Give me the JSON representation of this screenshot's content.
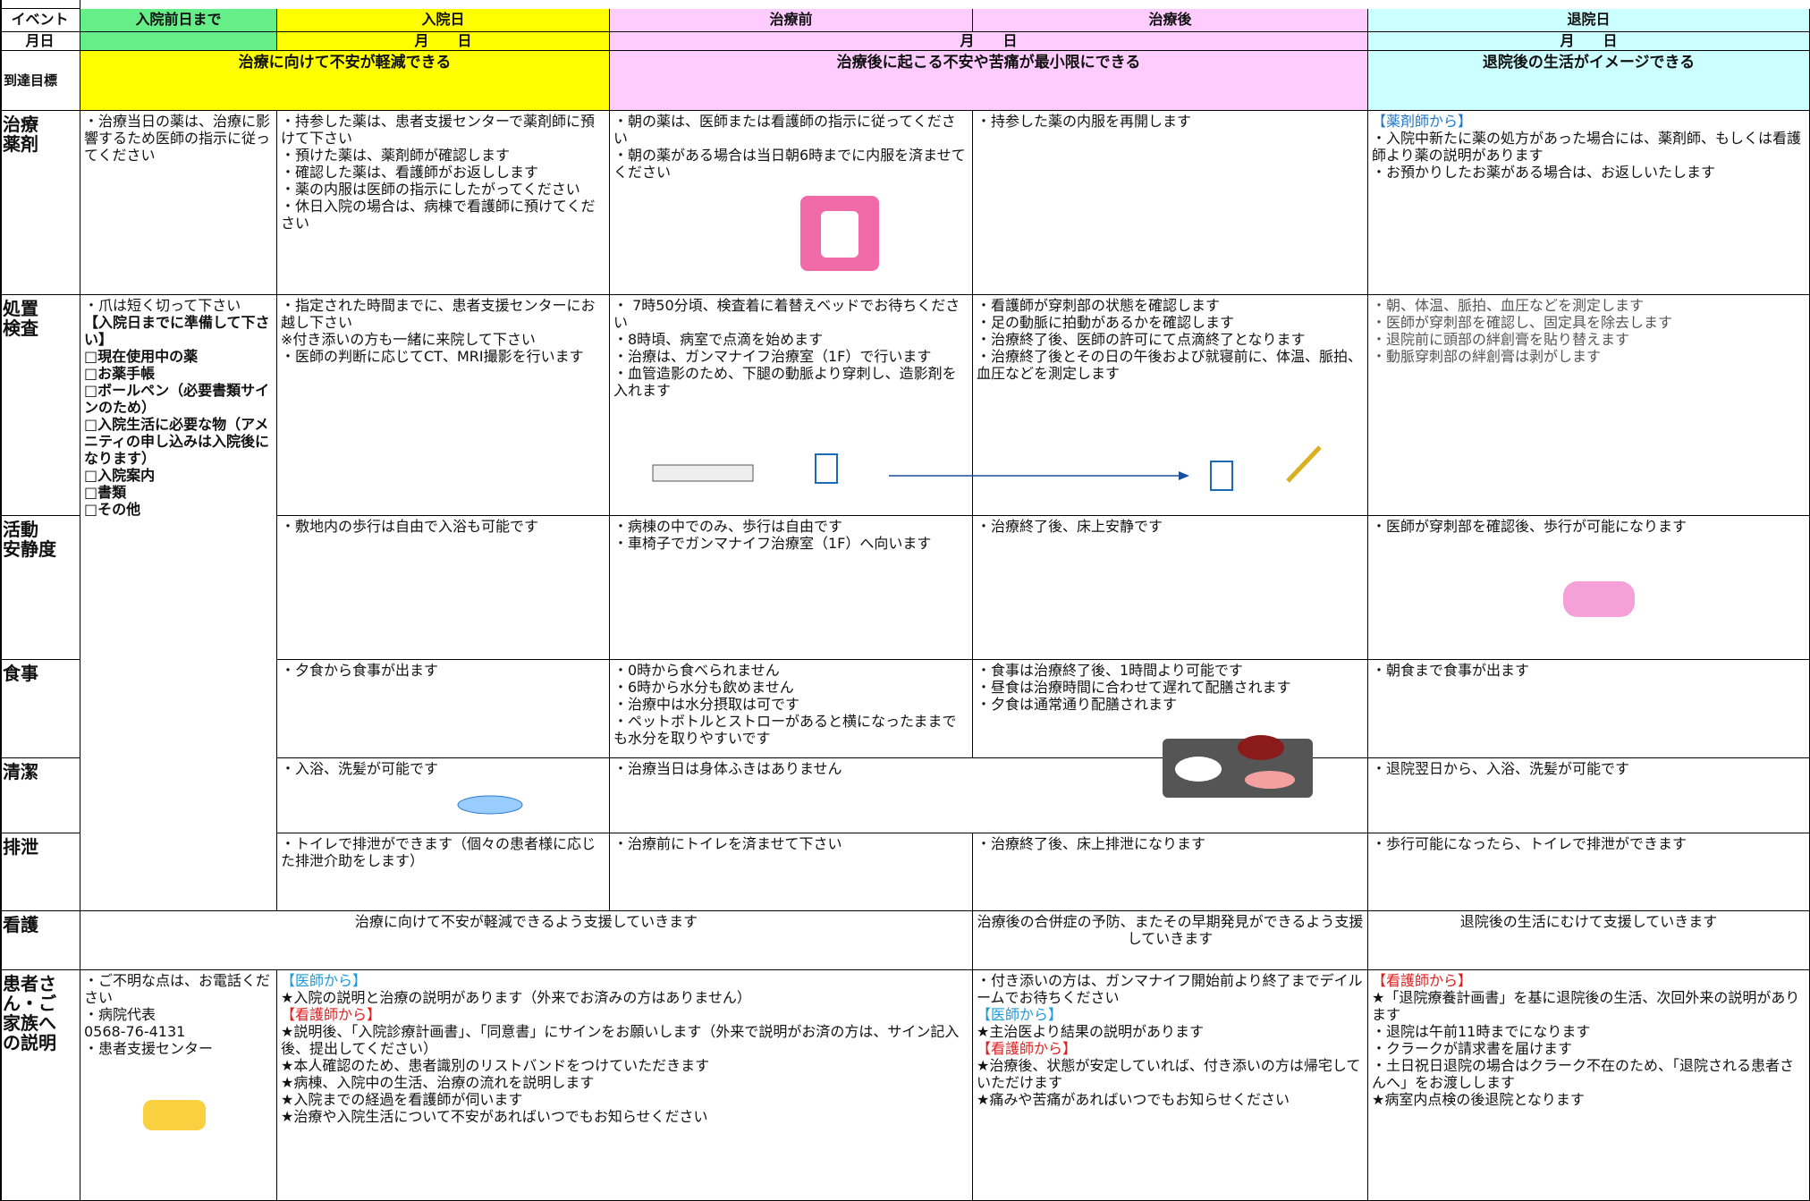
{
  "header": {
    "event": "イベント",
    "phases": [
      "入院前日まで",
      "入院日",
      "治療前",
      "治療後",
      "退院日"
    ]
  },
  "date_row": {
    "label": "月日",
    "cells": [
      "月　　日",
      "月　　日",
      "月　　日"
    ]
  },
  "goal_row": {
    "label": "到達目標",
    "cells": [
      "治療に向けて不安が軽減できる",
      "治療後に起こる不安や苦痛が最小限にできる",
      "退院後の生活がイメージできる"
    ]
  },
  "rows": [
    {
      "label": [
        "治療",
        "薬剤"
      ],
      "cells": [
        [
          "・治療当日の薬は、治療に影響するため医師の指示に従ってください"
        ],
        [
          "・持参した薬は、患者支援センターで薬剤師に預けて下さい",
          "・預けた薬は、薬剤師が確認します",
          "・確認した薬は、看護師がお返しします",
          "・薬の内服は医師の指示にしたがってください",
          "・休日入院の場合は、病棟で看護師に預けてください"
        ],
        [
          "・朝の薬は、医師または看護師の指示に従ってください",
          "・朝の薬がある場合は当日朝6時までに内服を済ませてください"
        ],
        [
          "・持参した薬の内服を再開します"
        ],
        [
          {
            "text": "【薬剤師から】",
            "color": "#1f78c8"
          },
          "・入院中新たに薬の処方があった場合には、薬剤師、もしくは看護師より薬の説明があります",
          "・お預かりしたお薬がある場合は、お返しいたします"
        ]
      ]
    },
    {
      "label": [
        "処置",
        "検査"
      ],
      "cells": [
        [
          "・爪は短く切って下さい",
          {
            "text": "【入院日までに準備して下さい】",
            "bold": true
          },
          {
            "text": "□現在使用中の薬",
            "bold": true
          },
          {
            "text": "□お薬手帳",
            "bold": true
          },
          {
            "text": "□ボールペン（必要書類サインのため）",
            "bold": true
          },
          {
            "text": "□入院生活に必要な物（アメニティの申し込みは入院後になります）",
            "bold": true
          },
          {
            "text": "□入院案内",
            "bold": true
          },
          {
            "text": "□書類",
            "bold": true
          },
          {
            "text": "□その他",
            "bold": true
          }
        ],
        [
          "・指定された時間までに、患者支援センターにお越し下さい",
          "※付き添いの方も一緒に来院して下さい",
          "・医師の判断に応じてCT、MRI撮影を行います"
        ],
        [
          "・ 7時50分頃、検査着に着替えベッドでお待ちください",
          "・8時頃、病室で点滴を始めます",
          "・治療は、ガンマナイフ治療室（1F）で行います",
          "・血管造影のため、下腿の動脈より穿刺し、造影剤を入れます"
        ],
        [
          "・看護師が穿刺部の状態を確認します",
          "・足の動脈に拍動があるかを確認します",
          "・治療終了後、医師の許可にて点滴終了となります",
          "・治療終了後とその日の午後および就寝前に、体温、脈拍、血圧などを測定します"
        ],
        [
          {
            "text": "・朝、体温、脈拍、血圧などを測定します",
            "color": "#555555"
          },
          {
            "text": "・医師が穿刺部を確認し、固定具を除去します",
            "color": "#555555"
          },
          {
            "text": "・退院前に頭部の絆創膏を貼り替えます",
            "color": "#555555"
          },
          {
            "text": "・動脈穿刺部の絆創膏は剥がします",
            "color": "#555555"
          }
        ]
      ]
    },
    {
      "label": [
        "活動",
        "安静度"
      ],
      "cells": [
        [
          "・敷地内の歩行は自由で入浴も可能です"
        ],
        [
          "・病棟の中でのみ、歩行は自由です",
          "・車椅子でガンマナイフ治療室（1F）へ向います"
        ],
        [
          "・治療終了後、床上安静です"
        ],
        [
          "・医師が穿刺部を確認後、歩行が可能になります"
        ]
      ]
    },
    {
      "label": [
        "食事"
      ],
      "cells": [
        [
          "・夕食から食事が出ます"
        ],
        [
          "・0時から食べられません",
          "・6時から水分も飲めません",
          "・治療中は水分摂取は可です",
          "・ペットボトルとストローがあると横になったままでも水分を取りやすいです"
        ],
        [
          "・食事は治療終了後、1時間より可能です",
          "・昼食は治療時間に合わせて遅れて配膳されます",
          "・夕食は通常通り配膳されます"
        ],
        [
          "・朝食まで食事が出ます"
        ]
      ]
    },
    {
      "label": [
        "清潔"
      ],
      "cells": [
        [
          "・入浴、洗髪が可能です"
        ],
        [
          "・治療当日は身体ふきはありません"
        ],
        [
          "・退院翌日から、入浴、洗髪が可能です"
        ]
      ]
    },
    {
      "label": [
        "排泄"
      ],
      "cells": [
        [
          "・トイレで排泄ができます（個々の患者様に応じた排泄介助をします）"
        ],
        [
          "・治療前にトイレを済ませて下さい"
        ],
        [
          "・治療終了後、床上排泄になります"
        ],
        [
          "・歩行可能になったら、トイレで排泄ができます"
        ]
      ]
    },
    {
      "label": [
        "看護"
      ],
      "cells": [
        [
          "治療に向けて不安が軽減できるよう支援していきます"
        ],
        [
          "治療後の合併症の予防、またその早期発見ができるよう支援していきます"
        ],
        [
          "退院後の生活にむけて支援していきます"
        ]
      ]
    },
    {
      "label": [
        "患者さ",
        "ん・ご",
        "家族へ",
        "の説明"
      ],
      "cells": [
        [
          "・ご不明な点は、お電話ください",
          "・病院代表",
          "0568-76-4131",
          "・患者支援センター"
        ],
        [
          {
            "text": "【医師から】",
            "color": "#1f9ad6"
          },
          "★入院の説明と治療の説明があります（外来でお済みの方はありません）",
          {
            "text": "【看護師から】",
            "color": "#e02020"
          },
          "★説明後、「入院診療計画書」、「同意書」にサインをお願いします（外来で説明がお済の方は、サイン記入後、提出してください）",
          "★本人確認のため、患者識別のリストバンドをつけていただきます",
          "★病棟、入院中の生活、治療の流れを説明します",
          "★入院までの経過を看護師が伺います",
          "★治療や入院生活について不安があればいつでもお知らせください"
        ],
        [
          "・付き添いの方は、ガンマナイフ開始前より終了までデイルームでお待ちください",
          {
            "text": "【医師から】",
            "color": "#1f9ad6"
          },
          "★主治医より結果の説明があります",
          {
            "text": "【看護師から】",
            "color": "#e02020"
          },
          "★治療後、状態が安定していれば、付き添いの方は帰宅していただけます",
          "★痛みや苦痛があればいつでもお知らせください"
        ],
        [
          {
            "text": "【看護師から】",
            "color": "#e02020"
          },
          "★「退院療養計画書」を基に退院後の生活、次回外来の説明があります",
          "・退院は午前11時までになります",
          "・クラークが請求書を届けます",
          "・土日祝日退院の場合はクラーク不在のため、「退院される患者さんへ」をお渡しします",
          "★病室内点検の後退院となります"
        ]
      ]
    }
  ]
}
